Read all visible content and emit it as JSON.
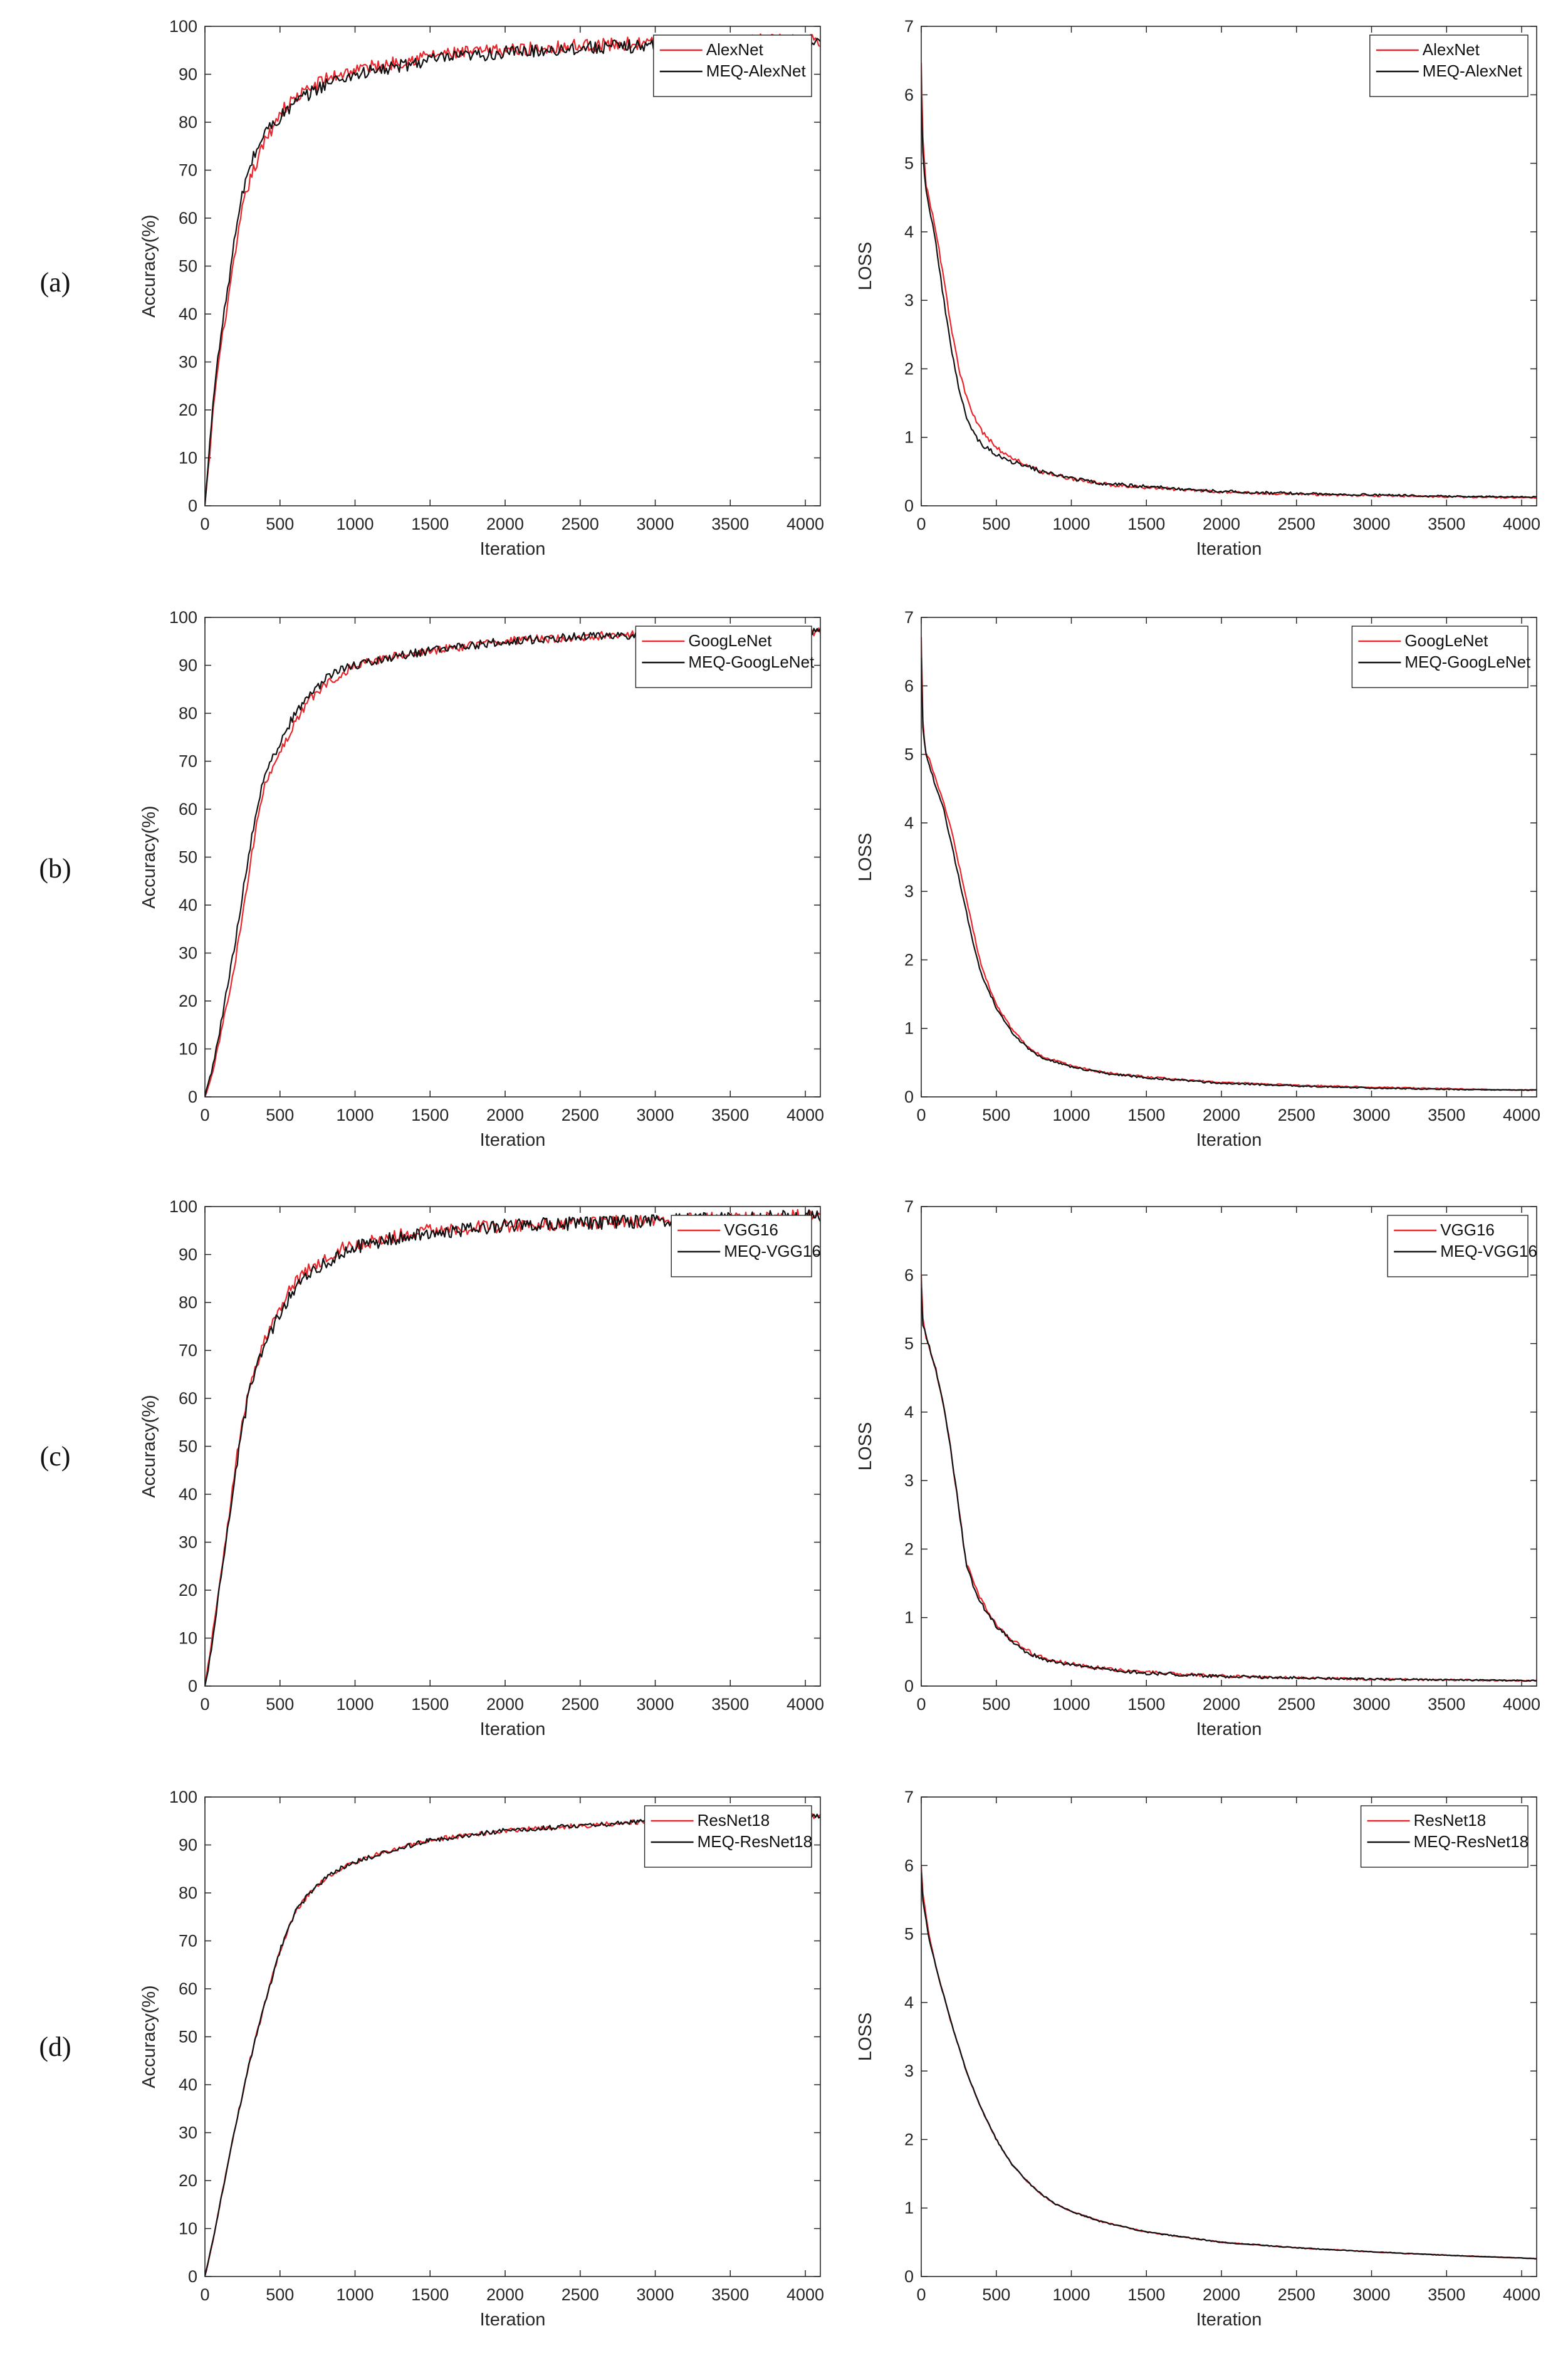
{
  "figure": {
    "row_labels": [
      "(a)",
      "(b)",
      "(c)",
      "(d)"
    ]
  },
  "chart_data": [
    {
      "id": "a-acc",
      "type": "line",
      "row": 0,
      "col": 0,
      "xlabel": "Iteration",
      "ylabel": "Accuracy(%)",
      "xlim": [
        0,
        4100
      ],
      "ylim": [
        0,
        100
      ],
      "xticks": [
        0,
        500,
        1000,
        1500,
        2000,
        2500,
        3000,
        3500,
        4000
      ],
      "yticks": [
        0,
        10,
        20,
        30,
        40,
        50,
        60,
        70,
        80,
        90,
        100
      ],
      "legend": "top-right",
      "noise": 1.4,
      "series": [
        {
          "name": "AlexNet",
          "color": "#e8262b",
          "x": [
            0,
            30,
            60,
            100,
            150,
            200,
            250,
            300,
            400,
            500,
            600,
            700,
            800,
            900,
            1000,
            1200,
            1500,
            2000,
            2500,
            3000,
            3500,
            4000,
            4100
          ],
          "y": [
            0,
            10,
            22,
            32,
            42,
            52,
            62,
            68,
            76,
            82,
            85,
            87,
            89,
            90,
            91,
            92,
            94,
            95,
            96,
            96.5,
            97,
            97,
            97
          ]
        },
        {
          "name": "MEQ-AlexNet",
          "color": "#111111",
          "x": [
            0,
            30,
            60,
            100,
            150,
            200,
            250,
            300,
            400,
            500,
            600,
            700,
            800,
            900,
            1000,
            1200,
            1500,
            2000,
            2500,
            3000,
            3500,
            4000,
            4100
          ],
          "y": [
            0,
            12,
            24,
            34,
            45,
            56,
            65,
            71,
            78,
            81,
            84,
            86,
            88,
            89,
            90,
            91,
            93,
            94.5,
            95.5,
            96,
            96.5,
            96.5,
            96.5
          ]
        }
      ]
    },
    {
      "id": "a-loss",
      "type": "line",
      "row": 0,
      "col": 1,
      "xlabel": "Iteration",
      "ylabel": "LOSS",
      "xlim": [
        0,
        4100
      ],
      "ylim": [
        0,
        7
      ],
      "xticks": [
        0,
        500,
        1000,
        1500,
        2000,
        2500,
        3000,
        3500,
        4000
      ],
      "yticks": [
        0,
        1,
        2,
        3,
        4,
        5,
        6,
        7
      ],
      "legend": "top-right",
      "noise": 0.035,
      "series": [
        {
          "name": "AlexNet",
          "color": "#e8262b",
          "x": [
            0,
            10,
            30,
            60,
            100,
            150,
            200,
            250,
            300,
            350,
            400,
            500,
            600,
            700,
            800,
            1000,
            1200,
            1500,
            2000,
            2500,
            3000,
            3500,
            4000,
            4100
          ],
          "y": [
            6.5,
            5.4,
            4.7,
            4.4,
            4.0,
            3.3,
            2.6,
            2.0,
            1.6,
            1.3,
            1.1,
            0.85,
            0.7,
            0.6,
            0.5,
            0.4,
            0.32,
            0.27,
            0.2,
            0.17,
            0.15,
            0.13,
            0.12,
            0.12
          ]
        },
        {
          "name": "MEQ-AlexNet",
          "color": "#111111",
          "x": [
            0,
            10,
            30,
            60,
            100,
            150,
            200,
            250,
            300,
            350,
            400,
            500,
            600,
            700,
            800,
            1000,
            1200,
            1500,
            2000,
            2500,
            3000,
            3500,
            4000,
            4100
          ],
          "y": [
            6.0,
            5.2,
            4.6,
            4.3,
            3.8,
            3.0,
            2.3,
            1.7,
            1.3,
            1.05,
            0.9,
            0.75,
            0.65,
            0.58,
            0.5,
            0.4,
            0.33,
            0.28,
            0.21,
            0.18,
            0.16,
            0.14,
            0.13,
            0.13
          ]
        }
      ]
    },
    {
      "id": "b-acc",
      "type": "line",
      "row": 1,
      "col": 0,
      "xlabel": "Iteration",
      "ylabel": "Accuracy(%)",
      "xlim": [
        0,
        4100
      ],
      "ylim": [
        0,
        100
      ],
      "xticks": [
        0,
        500,
        1000,
        1500,
        2000,
        2500,
        3000,
        3500,
        4000
      ],
      "yticks": [
        0,
        10,
        20,
        30,
        40,
        50,
        60,
        70,
        80,
        90,
        100
      ],
      "legend": "top-right",
      "noise": 0.9,
      "series": [
        {
          "name": "GoogLeNet",
          "color": "#e8262b",
          "x": [
            0,
            50,
            100,
            150,
            200,
            250,
            300,
            350,
            400,
            500,
            600,
            700,
            800,
            900,
            1000,
            1200,
            1500,
            2000,
            2500,
            3000,
            3500,
            4000,
            4100
          ],
          "y": [
            0,
            5,
            12,
            20,
            28,
            38,
            48,
            58,
            65,
            72,
            78,
            83,
            86,
            88,
            90,
            91.5,
            93,
            95,
            96,
            96.5,
            97,
            97,
            97
          ]
        },
        {
          "name": "MEQ-GoogLeNet",
          "color": "#111111",
          "x": [
            0,
            50,
            100,
            150,
            200,
            250,
            300,
            350,
            400,
            500,
            600,
            700,
            800,
            900,
            1000,
            1200,
            1500,
            2000,
            2500,
            3000,
            3500,
            4000,
            4100
          ],
          "y": [
            0,
            6,
            14,
            23,
            32,
            42,
            52,
            61,
            67,
            74,
            80,
            84,
            87,
            89,
            90,
            91.5,
            93,
            95,
            96,
            96.5,
            97,
            97,
            97
          ]
        }
      ]
    },
    {
      "id": "b-loss",
      "type": "line",
      "row": 1,
      "col": 1,
      "xlabel": "Iteration",
      "ylabel": "LOSS",
      "xlim": [
        0,
        4100
      ],
      "ylim": [
        0,
        7
      ],
      "xticks": [
        0,
        500,
        1000,
        1500,
        2000,
        2500,
        3000,
        3500,
        4000
      ],
      "yticks": [
        0,
        1,
        2,
        3,
        4,
        5,
        6,
        7
      ],
      "legend": "top-right",
      "noise": 0.02,
      "series": [
        {
          "name": "GoogLeNet",
          "color": "#e8262b",
          "x": [
            0,
            10,
            30,
            60,
            100,
            150,
            200,
            250,
            300,
            350,
            400,
            500,
            600,
            700,
            800,
            1000,
            1200,
            1500,
            2000,
            2500,
            3000,
            3500,
            4000,
            4100
          ],
          "y": [
            6.7,
            5.5,
            5.0,
            4.9,
            4.6,
            4.3,
            3.9,
            3.4,
            2.9,
            2.4,
            1.9,
            1.35,
            1.0,
            0.75,
            0.6,
            0.45,
            0.36,
            0.29,
            0.21,
            0.17,
            0.14,
            0.12,
            0.1,
            0.1
          ]
        },
        {
          "name": "MEQ-GoogLeNet",
          "color": "#111111",
          "x": [
            0,
            10,
            30,
            60,
            100,
            150,
            200,
            250,
            300,
            350,
            400,
            500,
            600,
            700,
            800,
            1000,
            1200,
            1500,
            2000,
            2500,
            3000,
            3500,
            4000,
            4100
          ],
          "y": [
            6.4,
            5.4,
            5.0,
            4.8,
            4.5,
            4.2,
            3.7,
            3.2,
            2.7,
            2.2,
            1.8,
            1.3,
            0.95,
            0.73,
            0.58,
            0.44,
            0.35,
            0.28,
            0.2,
            0.16,
            0.13,
            0.11,
            0.1,
            0.1
          ]
        }
      ]
    },
    {
      "id": "c-acc",
      "type": "line",
      "row": 2,
      "col": 0,
      "xlabel": "Iteration",
      "ylabel": "Accuracy(%)",
      "xlim": [
        0,
        4100
      ],
      "ylim": [
        0,
        100
      ],
      "xticks": [
        0,
        500,
        1000,
        1500,
        2000,
        2500,
        3000,
        3500,
        4000
      ],
      "yticks": [
        0,
        10,
        20,
        30,
        40,
        50,
        60,
        70,
        80,
        90,
        100
      ],
      "legend": "top-right",
      "noise": 1.4,
      "series": [
        {
          "name": "VGG16",
          "color": "#e8262b",
          "x": [
            0,
            30,
            60,
            100,
            150,
            200,
            250,
            300,
            400,
            500,
            600,
            700,
            800,
            900,
            1000,
            1200,
            1500,
            2000,
            2500,
            3000,
            3500,
            4000,
            4100
          ],
          "y": [
            0,
            6,
            13,
            22,
            33,
            45,
            55,
            63,
            72,
            79,
            84,
            87,
            89,
            91,
            92,
            93.5,
            95,
            96,
            96.5,
            97,
            97.5,
            98,
            98
          ]
        },
        {
          "name": "MEQ-VGG16",
          "color": "#111111",
          "x": [
            0,
            30,
            60,
            100,
            150,
            200,
            250,
            300,
            400,
            500,
            600,
            700,
            800,
            900,
            1000,
            1200,
            1500,
            2000,
            2500,
            3000,
            3500,
            4000,
            4100
          ],
          "y": [
            0,
            5,
            12,
            21,
            32,
            44,
            54,
            62,
            71,
            78,
            83,
            86,
            88,
            90,
            91.5,
            93,
            94.5,
            96,
            96.5,
            97,
            97.5,
            98,
            98
          ]
        }
      ]
    },
    {
      "id": "c-loss",
      "type": "line",
      "row": 2,
      "col": 1,
      "xlabel": "Iteration",
      "ylabel": "LOSS",
      "xlim": [
        0,
        4100
      ],
      "ylim": [
        0,
        7
      ],
      "xticks": [
        0,
        500,
        1000,
        1500,
        2000,
        2500,
        3000,
        3500,
        4000
      ],
      "yticks": [
        0,
        1,
        2,
        3,
        4,
        5,
        6,
        7
      ],
      "legend": "top-right",
      "noise": 0.035,
      "series": [
        {
          "name": "VGG16",
          "color": "#e8262b",
          "x": [
            0,
            10,
            30,
            60,
            100,
            150,
            200,
            250,
            280,
            300,
            350,
            400,
            500,
            600,
            700,
            800,
            1000,
            1200,
            1500,
            2000,
            2500,
            3000,
            3500,
            4000,
            4100
          ],
          "y": [
            6.0,
            5.4,
            5.1,
            4.9,
            4.6,
            4.1,
            3.4,
            2.6,
            2.1,
            1.8,
            1.5,
            1.25,
            0.9,
            0.68,
            0.52,
            0.42,
            0.32,
            0.26,
            0.2,
            0.15,
            0.12,
            0.1,
            0.09,
            0.08,
            0.08
          ]
        },
        {
          "name": "MEQ-VGG16",
          "color": "#111111",
          "x": [
            0,
            10,
            30,
            60,
            100,
            150,
            200,
            250,
            280,
            300,
            350,
            400,
            500,
            600,
            700,
            800,
            1000,
            1200,
            1500,
            2000,
            2500,
            3000,
            3500,
            4000,
            4100
          ],
          "y": [
            5.8,
            5.3,
            5.1,
            4.9,
            4.6,
            4.1,
            3.4,
            2.6,
            2.1,
            1.75,
            1.45,
            1.2,
            0.88,
            0.66,
            0.5,
            0.4,
            0.31,
            0.25,
            0.19,
            0.14,
            0.12,
            0.1,
            0.09,
            0.08,
            0.08
          ]
        }
      ]
    },
    {
      "id": "d-acc",
      "type": "line",
      "row": 3,
      "col": 0,
      "xlabel": "Iteration",
      "ylabel": "Accuracy(%)",
      "xlim": [
        0,
        4100
      ],
      "ylim": [
        0,
        100
      ],
      "xticks": [
        0,
        500,
        1000,
        1500,
        2000,
        2500,
        3000,
        3500,
        4000
      ],
      "yticks": [
        0,
        10,
        20,
        30,
        40,
        50,
        60,
        70,
        80,
        90,
        100
      ],
      "legend": "top-right",
      "noise": 0.5,
      "series": [
        {
          "name": "ResNet18",
          "color": "#e8262b",
          "x": [
            0,
            50,
            100,
            150,
            200,
            250,
            300,
            350,
            400,
            500,
            600,
            700,
            800,
            900,
            1000,
            1200,
            1500,
            2000,
            2500,
            3000,
            3500,
            4000,
            4100
          ],
          "y": [
            0,
            7,
            15,
            23,
            31,
            38,
            45,
            51,
            57,
            68,
            76,
            80,
            83,
            85,
            86.5,
            88.5,
            91,
            93,
            94,
            95,
            95.5,
            96,
            96
          ]
        },
        {
          "name": "MEQ-ResNet18",
          "color": "#111111",
          "x": [
            0,
            50,
            100,
            150,
            200,
            250,
            300,
            350,
            400,
            500,
            600,
            700,
            800,
            900,
            1000,
            1200,
            1500,
            2000,
            2500,
            3000,
            3500,
            4000,
            4100
          ],
          "y": [
            0,
            7,
            15,
            23,
            31,
            38,
            45,
            51,
            57,
            68,
            76,
            80,
            83,
            85,
            86.5,
            88.5,
            91,
            93,
            94,
            95,
            95.5,
            96,
            96
          ]
        }
      ]
    },
    {
      "id": "d-loss",
      "type": "line",
      "row": 3,
      "col": 1,
      "xlabel": "Iteration",
      "ylabel": "LOSS",
      "xlim": [
        0,
        4100
      ],
      "ylim": [
        0,
        7
      ],
      "xticks": [
        0,
        500,
        1000,
        1500,
        2000,
        2500,
        3000,
        3500,
        4000
      ],
      "yticks": [
        0,
        1,
        2,
        3,
        4,
        5,
        6,
        7
      ],
      "legend": "top-right",
      "noise": 0.012,
      "series": [
        {
          "name": "ResNet18",
          "color": "#e8262b",
          "x": [
            0,
            10,
            50,
            100,
            200,
            300,
            400,
            500,
            600,
            700,
            800,
            900,
            1000,
            1200,
            1500,
            2000,
            2500,
            3000,
            3500,
            4000,
            4100
          ],
          "y": [
            6.0,
            5.6,
            5.0,
            4.5,
            3.7,
            3.0,
            2.45,
            2.0,
            1.65,
            1.4,
            1.2,
            1.05,
            0.95,
            0.8,
            0.65,
            0.5,
            0.42,
            0.36,
            0.31,
            0.27,
            0.26
          ]
        },
        {
          "name": "MEQ-ResNet18",
          "color": "#111111",
          "x": [
            0,
            10,
            50,
            100,
            200,
            300,
            400,
            500,
            600,
            700,
            800,
            900,
            1000,
            1200,
            1500,
            2000,
            2500,
            3000,
            3500,
            4000,
            4100
          ],
          "y": [
            5.9,
            5.5,
            4.95,
            4.5,
            3.7,
            3.0,
            2.45,
            2.0,
            1.65,
            1.4,
            1.2,
            1.05,
            0.95,
            0.8,
            0.65,
            0.5,
            0.42,
            0.36,
            0.31,
            0.27,
            0.26
          ]
        }
      ]
    }
  ]
}
